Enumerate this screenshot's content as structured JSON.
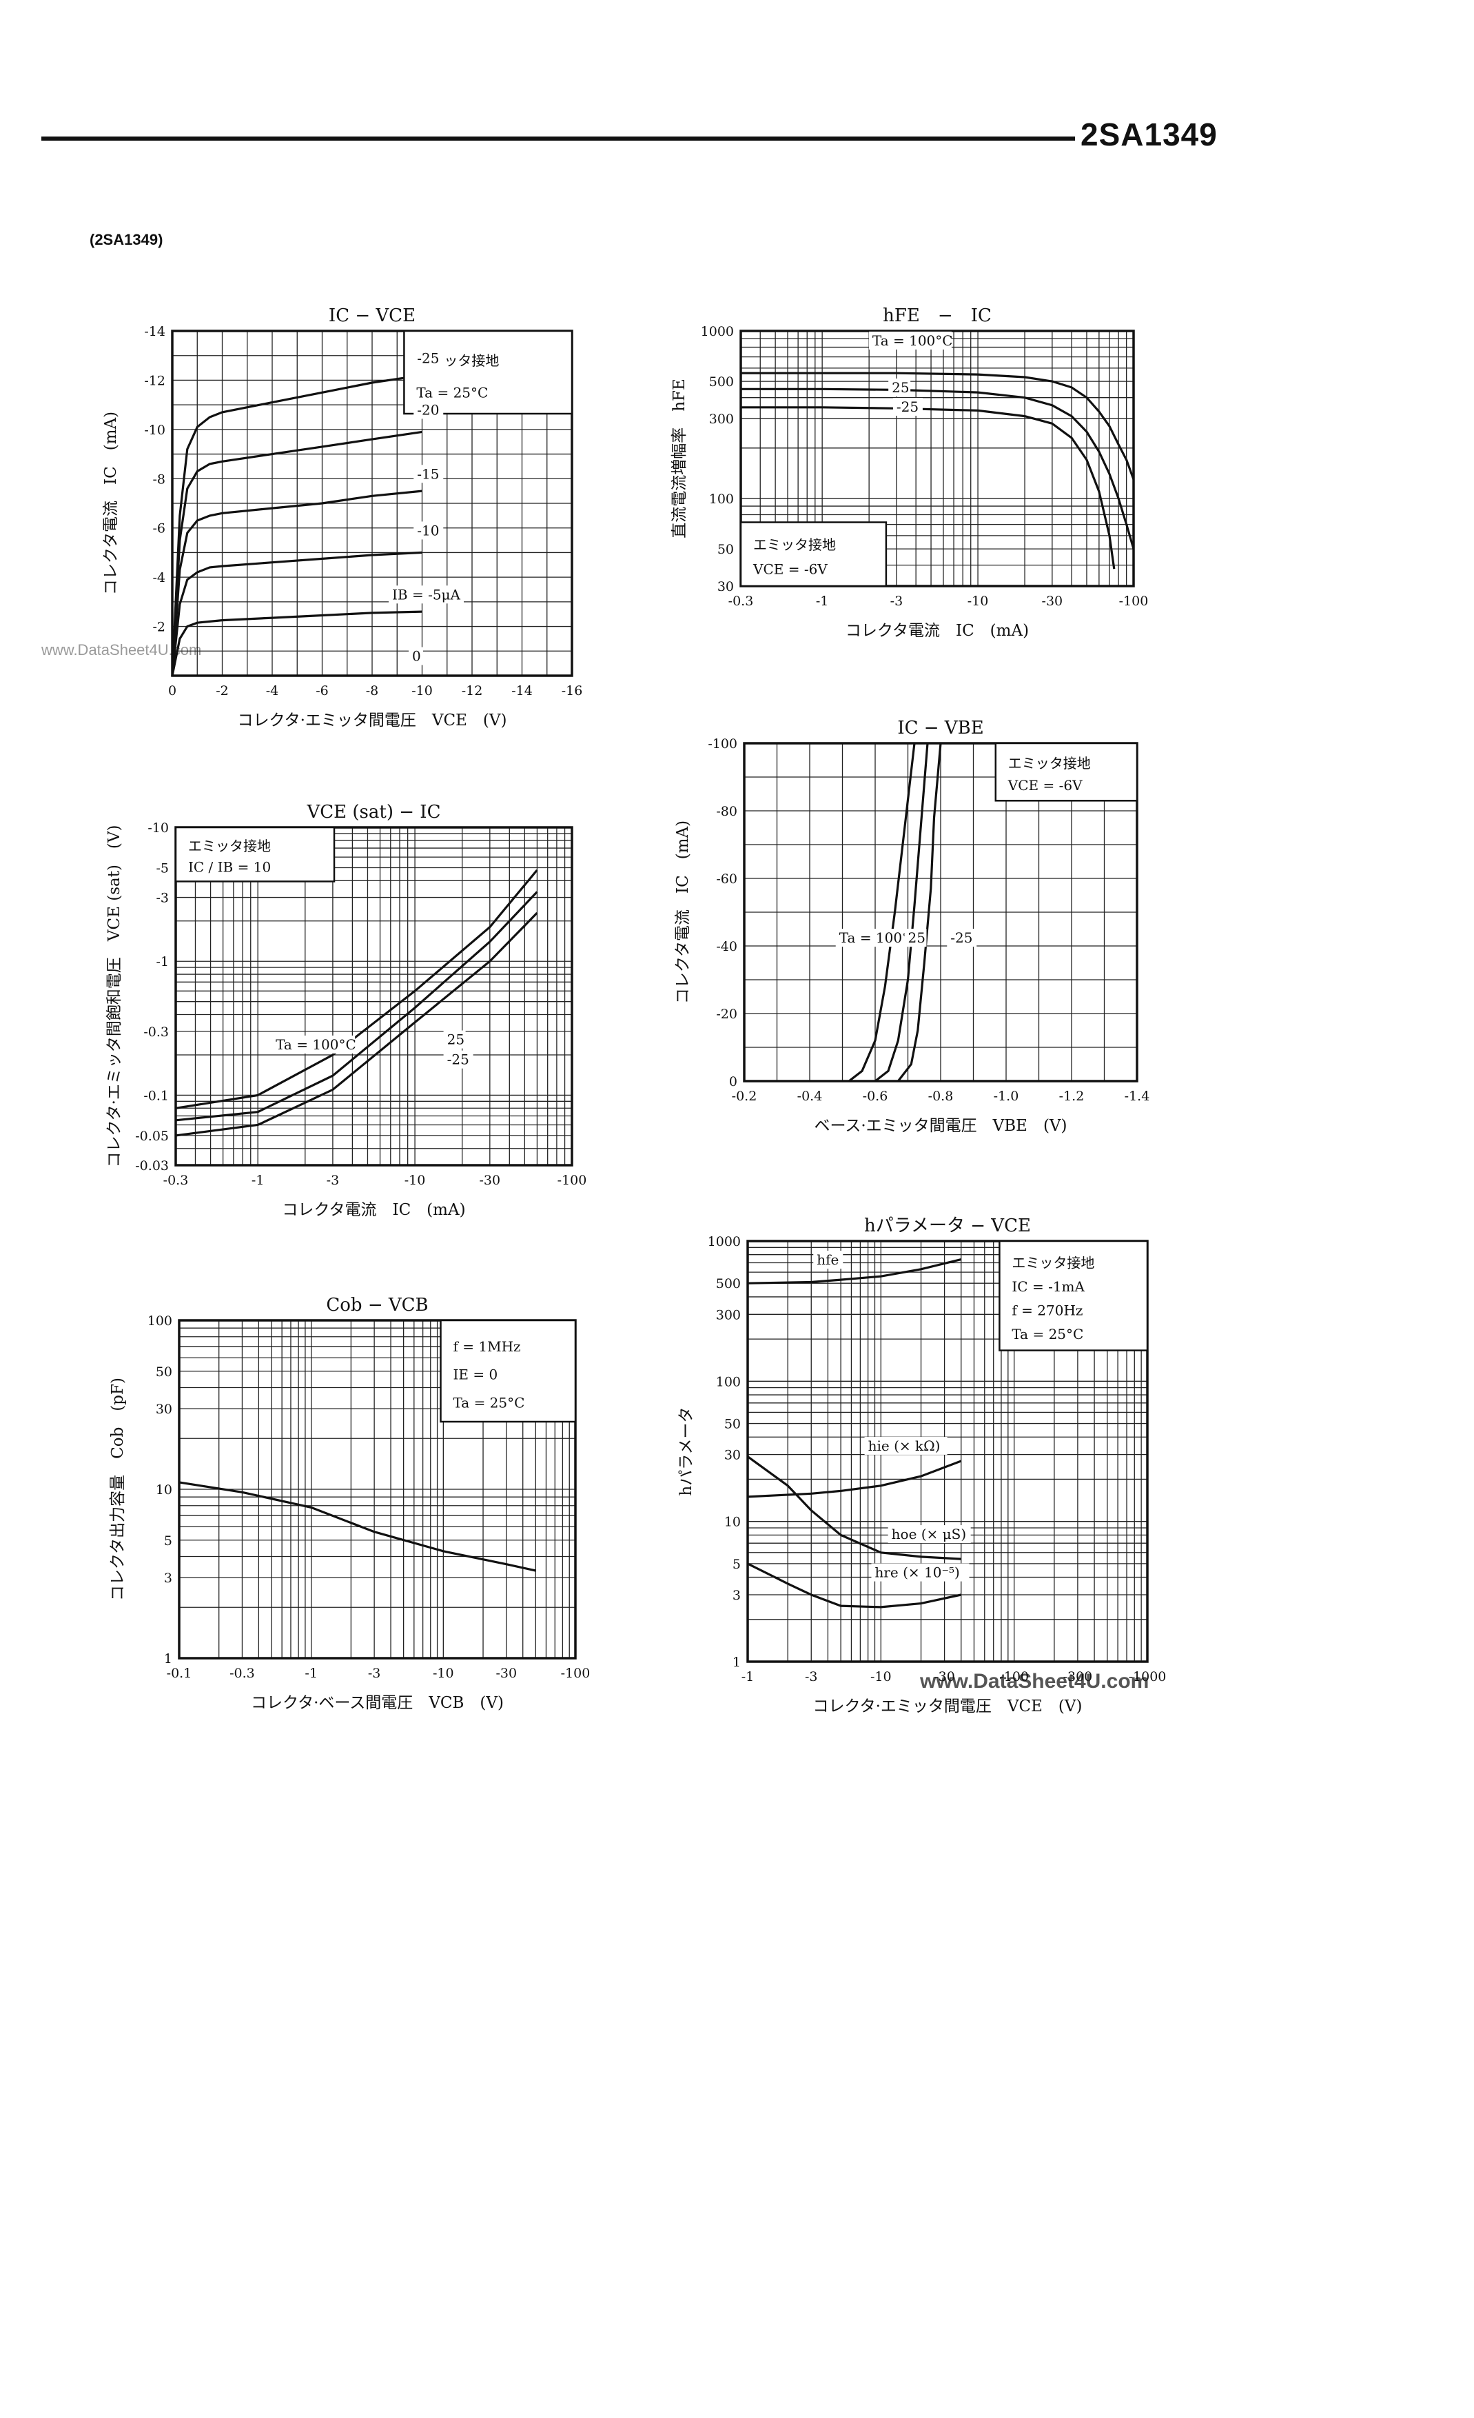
{
  "header": {
    "part_number": "2SA1349",
    "sub_part": "(2SA1349)",
    "watermark_side": "www.DataSheet4U.com",
    "watermark_bottom": "www.DataSheet4U.com"
  },
  "colors": {
    "ink": "#111111",
    "paper": "#ffffff"
  },
  "chart_data": [
    {
      "id": "ic-vce",
      "type": "line",
      "title": "IC − VCE",
      "xlabel": "コレクタ·エミッタ間電圧　VCE　(V)",
      "ylabel": "コレクタ電流　IC　(mA)",
      "xscale": "linear",
      "yscale": "linear",
      "xlim": [
        0,
        -16
      ],
      "ylim": [
        0,
        -14
      ],
      "xgrid_count": 16,
      "ygrid_count": 14,
      "xticks": [
        0,
        -2,
        -4,
        -6,
        -8,
        -10,
        -12,
        -14,
        -16
      ],
      "xtick_labels": [
        "0",
        "-2",
        "-4",
        "-6",
        "-8",
        "-10",
        "-12",
        "-14",
        "-16"
      ],
      "yticks": [
        -2,
        -4,
        -6,
        -8,
        -10,
        -12,
        -14
      ],
      "ytick_labels": [
        "-2",
        "-4",
        "-6",
        "-8",
        "-10",
        "-12",
        "-14"
      ],
      "legend_box": {
        "position": "top-right",
        "lines": [
          "エミッタ接地",
          "Ta = 25°C"
        ]
      },
      "annotations": [
        {
          "text": "-25",
          "x": -9.8,
          "y": -12.7
        },
        {
          "text": "-20",
          "x": -9.8,
          "y": -10.6
        },
        {
          "text": "-15",
          "x": -9.8,
          "y": -8.0
        },
        {
          "text": "-10",
          "x": -9.8,
          "y": -5.7
        },
        {
          "text": "IB = -5μA",
          "x": -8.8,
          "y": -3.1
        },
        {
          "text": "0",
          "x": -9.6,
          "y": -0.6
        }
      ],
      "series": [
        {
          "name": "IB = -25μA",
          "x": [
            0,
            -0.3,
            -0.6,
            -1,
            -1.5,
            -2,
            -4,
            -6,
            -8,
            -10
          ],
          "y": [
            0,
            -6.5,
            -9.2,
            -10.1,
            -10.5,
            -10.7,
            -11.1,
            -11.5,
            -11.9,
            -12.2
          ]
        },
        {
          "name": "IB = -20μA",
          "x": [
            0,
            -0.3,
            -0.6,
            -1,
            -1.5,
            -2,
            -4,
            -6,
            -8,
            -10
          ],
          "y": [
            0,
            -5.5,
            -7.6,
            -8.3,
            -8.6,
            -8.7,
            -9.0,
            -9.3,
            -9.6,
            -9.9
          ]
        },
        {
          "name": "IB = -15μA",
          "x": [
            0,
            -0.3,
            -0.6,
            -1,
            -1.5,
            -2,
            -4,
            -6,
            -8,
            -10
          ],
          "y": [
            0,
            -4.3,
            -5.8,
            -6.3,
            -6.5,
            -6.6,
            -6.8,
            -7.0,
            -7.3,
            -7.5
          ]
        },
        {
          "name": "IB = -10μA",
          "x": [
            0,
            -0.3,
            -0.6,
            -1,
            -1.5,
            -2,
            -4,
            -6,
            -8,
            -10
          ],
          "y": [
            0,
            -2.9,
            -3.9,
            -4.2,
            -4.4,
            -4.45,
            -4.6,
            -4.75,
            -4.9,
            -5.0
          ]
        },
        {
          "name": "IB = -5μA",
          "x": [
            0,
            -0.3,
            -0.6,
            -1,
            -1.5,
            -2,
            -4,
            -6,
            -8,
            -10
          ],
          "y": [
            0,
            -1.5,
            -2.0,
            -2.15,
            -2.2,
            -2.25,
            -2.35,
            -2.45,
            -2.55,
            -2.6
          ]
        }
      ]
    },
    {
      "id": "hfe-ic",
      "type": "line",
      "title": "hFE　−　IC",
      "xlabel": "コレクタ電流　IC　(mA)",
      "ylabel": "直流電流増幅率　hFE",
      "xscale": "log",
      "yscale": "log",
      "xlim": [
        -0.3,
        -100
      ],
      "ylim": [
        30,
        1000
      ],
      "xticks": [
        -0.3,
        -1,
        -3,
        -10,
        -30,
        -100
      ],
      "xtick_labels": [
        "-0.3",
        "-1",
        "-3",
        "-10",
        "-30",
        "-100"
      ],
      "yticks": [
        30,
        50,
        100,
        300,
        500,
        1000
      ],
      "ytick_labels": [
        "30",
        "50",
        "100",
        "300",
        "500",
        "1000"
      ],
      "legend_box": {
        "position": "bottom-left",
        "lines": [
          "エミッタ接地",
          "VCE = -6V"
        ]
      },
      "annotations": [
        {
          "text": "Ta = 100°C",
          "x": -2.1,
          "y": 820
        },
        {
          "text": "25",
          "x": -2.8,
          "y": 430
        },
        {
          "text": "-25",
          "x": -3.0,
          "y": 330
        }
      ],
      "series": [
        {
          "name": "Ta = 100°C",
          "x": [
            -0.3,
            -1,
            -3,
            -10,
            -20,
            -30,
            -40,
            -50,
            -60,
            -70,
            -80,
            -90,
            -100
          ],
          "y": [
            560,
            560,
            560,
            550,
            530,
            500,
            460,
            400,
            330,
            270,
            210,
            170,
            130
          ]
        },
        {
          "name": "Ta = 25°C",
          "x": [
            -0.3,
            -1,
            -3,
            -10,
            -20,
            -30,
            -40,
            -50,
            -60,
            -70,
            -80,
            -90,
            -100
          ],
          "y": [
            450,
            450,
            445,
            430,
            400,
            360,
            310,
            250,
            190,
            140,
            100,
            70,
            50
          ]
        },
        {
          "name": "Ta = -25°C",
          "x": [
            -0.3,
            -1,
            -3,
            -10,
            -20,
            -30,
            -40,
            -50,
            -60,
            -70,
            -75
          ],
          "y": [
            350,
            350,
            345,
            335,
            310,
            280,
            230,
            170,
            110,
            60,
            38
          ]
        }
      ]
    },
    {
      "id": "ic-vbe",
      "type": "line",
      "title": "IC − VBE",
      "xlabel": "ベース·エミッタ間電圧　VBE　(V)",
      "ylabel": "コレクタ電流　IC　(mA)",
      "xscale": "linear",
      "yscale": "linear",
      "xlim": [
        -0.2,
        -1.4
      ],
      "ylim": [
        0,
        -100
      ],
      "xgrid_count": 12,
      "ygrid_count": 10,
      "xticks": [
        -0.2,
        -0.4,
        -0.6,
        -0.8,
        -1.0,
        -1.2,
        -1.4
      ],
      "xtick_labels": [
        "-0.2",
        "-0.4",
        "-0.6",
        "-0.8",
        "-1.0",
        "-1.2",
        "-1.4"
      ],
      "yticks": [
        0,
        -20,
        -40,
        -60,
        -80,
        -100
      ],
      "ytick_labels": [
        "0",
        "-20",
        "-40",
        "-60",
        "-80",
        "-100"
      ],
      "legend_box": {
        "position": "top-right",
        "lines": [
          "エミッタ接地",
          "VCE = -6V"
        ]
      },
      "annotations": [
        {
          "text": "Ta = 100°C",
          "x": -0.49,
          "y": -41
        },
        {
          "text": "25",
          "x": -0.7,
          "y": -41
        },
        {
          "text": "-25",
          "x": -0.83,
          "y": -41
        }
      ],
      "series": [
        {
          "name": "Ta = 100°C",
          "x": [
            -0.52,
            -0.56,
            -0.6,
            -0.63,
            -0.66,
            -0.69,
            -0.72
          ],
          "y": [
            0,
            -3,
            -12,
            -28,
            -50,
            -75,
            -100
          ]
        },
        {
          "name": "Ta = 25°C",
          "x": [
            -0.6,
            -0.64,
            -0.67,
            -0.7,
            -0.72,
            -0.74,
            -0.76
          ],
          "y": [
            0,
            -3,
            -12,
            -30,
            -52,
            -76,
            -100
          ]
        },
        {
          "name": "Ta = -25°C",
          "x": [
            -0.67,
            -0.71,
            -0.73,
            -0.75,
            -0.77,
            -0.78,
            -0.8
          ],
          "y": [
            0,
            -5,
            -15,
            -35,
            -57,
            -78,
            -100
          ]
        }
      ]
    },
    {
      "id": "vcesat-ic",
      "type": "line",
      "title": "VCE (sat) − IC",
      "xlabel": "コレクタ電流　IC　(mA)",
      "ylabel": "コレクタ·エミッタ間飽和電圧　VCE (sat)　(V)",
      "xscale": "log",
      "yscale": "log",
      "xlim": [
        -0.3,
        -100
      ],
      "ylim": [
        -0.03,
        -10
      ],
      "xticks": [
        -0.3,
        -1,
        -3,
        -10,
        -30,
        -100
      ],
      "xtick_labels": [
        "-0.3",
        "-1",
        "-3",
        "-10",
        "-30",
        "-100"
      ],
      "yticks": [
        -0.03,
        -0.05,
        -0.1,
        -0.3,
        -1,
        -3,
        -5,
        -10
      ],
      "ytick_labels": [
        "-0.03",
        "-0.05",
        "-0.1",
        "-0.3",
        "-1",
        "-3",
        "-5",
        "-10"
      ],
      "legend_box": {
        "position": "top-left",
        "lines": [
          "エミッタ接地",
          "IC / IB = 10"
        ]
      },
      "annotations": [
        {
          "text": "Ta = 100°C",
          "x": -1.3,
          "y": -0.22
        },
        {
          "text": "25",
          "x": -16,
          "y": -0.24
        },
        {
          "text": "-25",
          "x": -16,
          "y": -0.17
        }
      ],
      "series": [
        {
          "name": "Ta = 100°C",
          "x": [
            -0.3,
            -1,
            -3,
            -10,
            -30,
            -60
          ],
          "y": [
            -0.08,
            -0.1,
            -0.2,
            -0.6,
            -1.8,
            -4.8
          ]
        },
        {
          "name": "Ta = 25°C",
          "x": [
            -0.3,
            -1,
            -3,
            -10,
            -30,
            -60
          ],
          "y": [
            -0.065,
            -0.075,
            -0.14,
            -0.45,
            -1.4,
            -3.3
          ]
        },
        {
          "name": "Ta = -25°C",
          "x": [
            -0.3,
            -1,
            -3,
            -10,
            -30,
            -60
          ],
          "y": [
            -0.05,
            -0.06,
            -0.11,
            -0.35,
            -1.0,
            -2.3
          ]
        }
      ]
    },
    {
      "id": "hparam-vce",
      "type": "line",
      "title": "hパラメータ − VCE",
      "xlabel": "コレクタ·エミッタ間電圧　VCE　(V)",
      "ylabel": "hパラメータ",
      "xscale": "log",
      "yscale": "log",
      "xlim": [
        -1,
        -1000
      ],
      "ylim": [
        1,
        1000
      ],
      "xticks": [
        -1,
        -3,
        -10,
        -30,
        -100,
        -300,
        -1000
      ],
      "xtick_labels": [
        "-1",
        "-3",
        "-10",
        "-30",
        "-100",
        "-300",
        "-1000"
      ],
      "yticks": [
        1,
        3,
        5,
        10,
        30,
        50,
        100,
        300,
        500,
        1000
      ],
      "ytick_labels": [
        "1",
        "3",
        "5",
        "10",
        "30",
        "50",
        "100",
        "300",
        "500",
        "1000"
      ],
      "legend_box": {
        "position": "top-right",
        "lines": [
          "エミッタ接地",
          "IC = -1mA",
          "f = 270Hz",
          "Ta = 25°C"
        ]
      },
      "annotations": [
        {
          "text": "hfe",
          "x": -3.3,
          "y": 680
        },
        {
          "text": "hie (× kΩ)",
          "x": -8,
          "y": 32
        },
        {
          "text": "hoe (× μS)",
          "x": -12,
          "y": 7.5
        },
        {
          "text": "hre (× 10⁻⁵)",
          "x": -9,
          "y": 4.0
        }
      ],
      "series": [
        {
          "name": "hfe",
          "x": [
            -1,
            -3,
            -5,
            -10,
            -20,
            -40
          ],
          "y": [
            500,
            510,
            530,
            560,
            630,
            740
          ]
        },
        {
          "name": "hie (× kΩ)",
          "x": [
            -1,
            -3,
            -5,
            -10,
            -20,
            -40
          ],
          "y": [
            15,
            15.8,
            16.5,
            18,
            21,
            27
          ]
        },
        {
          "name": "hoe (× μS)",
          "x": [
            -1,
            -2,
            -3,
            -5,
            -10,
            -20,
            -40
          ],
          "y": [
            29,
            18,
            12,
            8,
            6,
            5.6,
            5.4
          ]
        },
        {
          "name": "hre (× 10⁻⁵)",
          "x": [
            -1,
            -2,
            -3,
            -5,
            -10,
            -20,
            -40
          ],
          "y": [
            5,
            3.6,
            3.0,
            2.5,
            2.45,
            2.6,
            3.0
          ]
        }
      ]
    },
    {
      "id": "cob-vcb",
      "type": "line",
      "title": "Cob − VCB",
      "xlabel": "コレクタ·ベース間電圧　VCB　(V)",
      "ylabel": "コレクタ出力容量　Cob　(pF)",
      "xscale": "log",
      "yscale": "log",
      "xlim": [
        -0.1,
        -100
      ],
      "ylim": [
        1,
        100
      ],
      "xticks": [
        -0.1,
        -0.3,
        -1,
        -3,
        -10,
        -30,
        -100
      ],
      "xtick_labels": [
        "-0.1",
        "-0.3",
        "-1",
        "-3",
        "-10",
        "-30",
        "-100"
      ],
      "yticks": [
        1,
        3,
        5,
        10,
        30,
        50,
        100
      ],
      "ytick_labels": [
        "1",
        "3",
        "5",
        "10",
        "30",
        "50",
        "100"
      ],
      "legend_box": {
        "position": "top-right",
        "lines": [
          "f = 1MHz",
          "IE = 0",
          "Ta = 25°C"
        ]
      },
      "annotations": [],
      "series": [
        {
          "name": "Cob",
          "x": [
            -0.1,
            -0.3,
            -1,
            -3,
            -10,
            -30,
            -50
          ],
          "y": [
            11,
            9.6,
            7.8,
            5.6,
            4.3,
            3.6,
            3.3
          ]
        }
      ]
    }
  ]
}
